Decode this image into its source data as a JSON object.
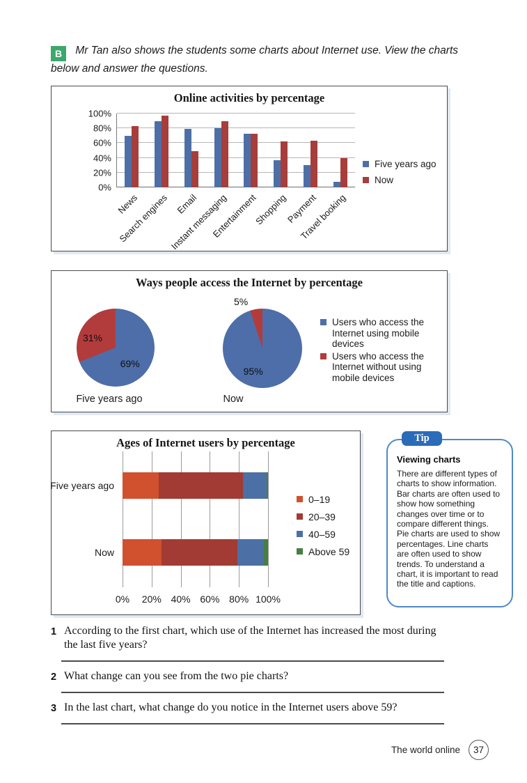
{
  "page": {
    "section_badge": "B",
    "intro": "Mr Tan also shows the students some charts about Internet use. View the charts below and answer the questions.",
    "footer": {
      "chapter": "The world online",
      "page_number": "37"
    }
  },
  "colors": {
    "section_badge_green": "#3ca86b",
    "tip_badge_blue": "#2b6cb8",
    "tip_border_blue": "#4e89c7"
  },
  "chart_data": [
    {
      "type": "bar",
      "variant": "grouped-vertical",
      "title": "Online activities by percentage",
      "categories": [
        "News",
        "Search engines",
        "Email",
        "Instant messaging",
        "Entertainment",
        "Shopping",
        "Payment",
        "Travel booking"
      ],
      "series": [
        {
          "name": "Five years ago",
          "color": "#4d6fa6",
          "values": [
            70,
            90,
            79,
            80,
            73,
            37,
            30,
            8
          ]
        },
        {
          "name": "Now",
          "color": "#a63e3b",
          "values": [
            83,
            97,
            49,
            90,
            73,
            62,
            63,
            40
          ]
        }
      ],
      "ylim": [
        0,
        100
      ],
      "y_ticks": [
        "0%",
        "20%",
        "40%",
        "60%",
        "80%",
        "100%"
      ],
      "grid": true,
      "legend_position": "right"
    },
    {
      "type": "pie",
      "title": "Ways people access the Internet by percentage",
      "pies": [
        {
          "caption": "Five years ago",
          "slices": [
            {
              "legend": "mobile",
              "value": 69,
              "label": "69%"
            },
            {
              "legend": "no-mobile",
              "value": 31,
              "label": "31%"
            }
          ]
        },
        {
          "caption": "Now",
          "slices": [
            {
              "legend": "mobile",
              "value": 95,
              "label": "95%"
            },
            {
              "legend": "no-mobile",
              "value": 5,
              "label": "5%"
            }
          ]
        }
      ],
      "legend": [
        {
          "key": "mobile",
          "label": "Users who access the Internet using mobile devices",
          "color": "#4d6ea8"
        },
        {
          "key": "no-mobile",
          "label": "Users who access the Internet without using mobile devices",
          "color": "#b23c3c"
        }
      ],
      "legend_position": "right"
    },
    {
      "type": "bar",
      "variant": "stacked-horizontal",
      "title": "Ages of Internet users by percentage",
      "categories": [
        "Five years ago",
        "Now"
      ],
      "series": [
        {
          "name": "0–19",
          "color": "#d1502e",
          "values": [
            25,
            27
          ]
        },
        {
          "name": "20–39",
          "color": "#a23b33",
          "values": [
            58,
            52
          ]
        },
        {
          "name": "40–59",
          "color": "#4c6fa5",
          "values": [
            16,
            18
          ]
        },
        {
          "name": "Above 59",
          "color": "#457f42",
          "values": [
            1,
            3
          ]
        }
      ],
      "xlim": [
        0,
        100
      ],
      "x_ticks": [
        "0%",
        "20%",
        "40%",
        "60%",
        "80%",
        "100%"
      ],
      "grid": true,
      "legend_position": "right"
    }
  ],
  "tip": {
    "badge": "Tip",
    "heading": "Viewing charts",
    "body": "There are different types of charts to show information. Bar charts are often used to show how something changes over time or to compare different things. Pie charts are used to show percentages. Line charts are often used to show trends. To understand a chart, it is important to read the title and captions."
  },
  "questions": [
    {
      "number": "1",
      "text": "According to the first chart, which use of the Internet has increased the most during the last five years?"
    },
    {
      "number": "2",
      "text": "What change can you see from the two pie charts?"
    },
    {
      "number": "3",
      "text": "In the last chart, what change do you notice in the Internet users above 59?"
    }
  ]
}
